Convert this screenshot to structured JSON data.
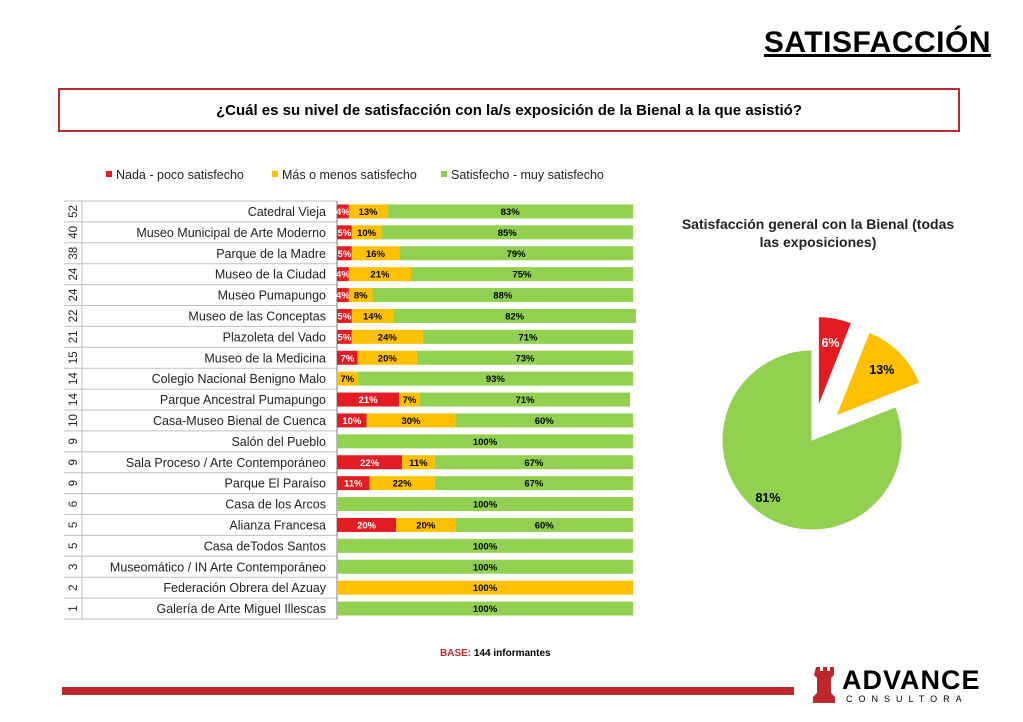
{
  "page": {
    "title": "SATISFACCIÓN"
  },
  "question": "¿Cuál es su nivel de satisfacción con la/s exposición de la Bienal a la que asistió?",
  "base": {
    "label": "BASE:",
    "text": " 144 informantes"
  },
  "logo": {
    "name": "ADVANCE",
    "sub": "CONSULTORA"
  },
  "colors": {
    "red": "#e31b23",
    "yellow": "#ffc000",
    "green": "#92d050",
    "accent": "#c0272d"
  },
  "chart_data": [
    {
      "type": "bar",
      "stacked": true,
      "orientation": "horizontal",
      "legend_position": "top",
      "series": [
        {
          "name": "Nada - poco satisfecho",
          "color": "#e31b23",
          "values": [
            4,
            5,
            5,
            4,
            4,
            5,
            5,
            7,
            0,
            21,
            10,
            0,
            22,
            11,
            0,
            20,
            0,
            0,
            0,
            0
          ]
        },
        {
          "name": "Más o menos satisfecho",
          "color": "#ffc000",
          "values": [
            13,
            10,
            16,
            21,
            8,
            14,
            24,
            20,
            7,
            7,
            30,
            0,
            11,
            22,
            0,
            20,
            0,
            0,
            100,
            0
          ]
        },
        {
          "name": "Satisfecho - muy satisfecho",
          "color": "#92d050",
          "values": [
            83,
            85,
            79,
            75,
            88,
            82,
            71,
            73,
            93,
            71,
            60,
            100,
            67,
            67,
            100,
            60,
            100,
            100,
            0,
            100
          ]
        }
      ],
      "categories": [
        "Catedral Vieja",
        "Museo Municipal de Arte Moderno",
        "Parque de la Madre",
        "Museo de la Ciudad",
        "Museo Pumapungo",
        "Museo de las Conceptas",
        "Plazoleta del Vado",
        "Museo de la Medicina",
        "Colegio Nacional Benigno Malo",
        "Parque Ancestral Pumapungo",
        "Casa-Museo Bienal de Cuenca",
        "Salón del Pueblo",
        "Sala Proceso / Arte Contemporáneo",
        "Parque El Paraíso",
        "Casa de los Arcos",
        "Alianza Francesa",
        "Casa deTodos Santos",
        "Museomático / IN Arte Contemporáneo",
        "Federación Obrera del Azuay",
        "Galería de Arte Miguel Illescas"
      ],
      "counts": [
        "52",
        "40",
        "38",
        "24",
        "24",
        "22",
        "21",
        "15",
        "14",
        "14",
        "10",
        "9",
        "9",
        "9",
        "6",
        "5",
        "5",
        "3",
        "2",
        "1"
      ],
      "value_suffix": "%"
    },
    {
      "type": "pie",
      "title": "Satisfacción general con la Bienal (todas las exposiciones)",
      "slices": [
        {
          "value": 6,
          "label": "6%",
          "color": "#e31b23",
          "exploded": true
        },
        {
          "value": 13,
          "label": "13%",
          "color": "#ffc000",
          "exploded": true
        },
        {
          "value": 81,
          "label": "81%",
          "color": "#92d050",
          "exploded": false
        }
      ]
    }
  ]
}
